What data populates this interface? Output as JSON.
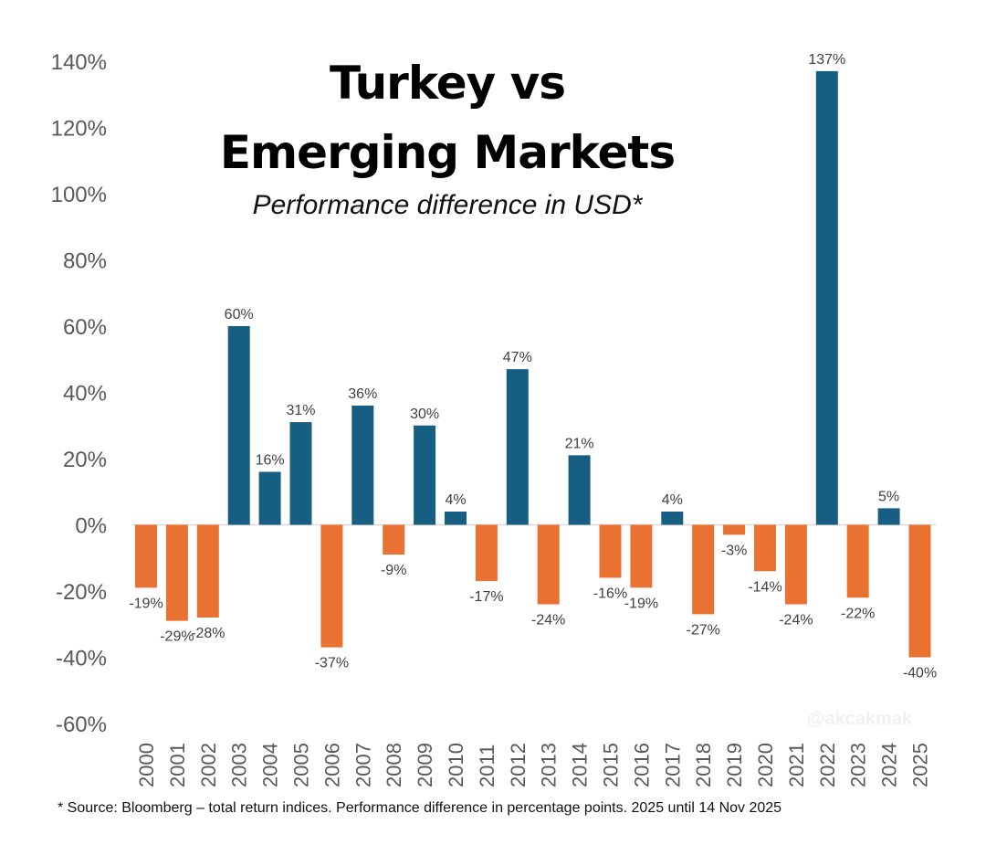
{
  "chart_data": {
    "type": "bar",
    "title_line1": "Turkey vs",
    "title_line2": "Emerging Markets",
    "subtitle": "Performance difference in USD*",
    "categories": [
      "2000",
      "2001",
      "2002",
      "2003",
      "2004",
      "2005",
      "2006",
      "2007",
      "2008",
      "2009",
      "2010",
      "2011",
      "2012",
      "2013",
      "2014",
      "2015",
      "2016",
      "2017",
      "2018",
      "2019",
      "2020",
      "2021",
      "2022",
      "2023",
      "2024",
      "2025"
    ],
    "values": [
      -19,
      -29,
      -28,
      60,
      16,
      31,
      -37,
      36,
      -9,
      30,
      4,
      -17,
      47,
      -24,
      21,
      -16,
      -19,
      4,
      -27,
      -3,
      -14,
      -24,
      137,
      -22,
      5,
      -40
    ],
    "data_labels": [
      "-19%",
      "-29%",
      "-28%",
      "60%",
      "16%",
      "31%",
      "-37%",
      "36%",
      "-9%",
      "30%",
      "4%",
      "-17%",
      "47%",
      "-24%",
      "21%",
      "-16%",
      "-19%",
      "4%",
      "-27%",
      "-3%",
      "-14%",
      "-24%",
      "137%",
      "-22%",
      "5%",
      "-40%"
    ],
    "ylim": [
      -60,
      140
    ],
    "y_ticks": [
      "-60%",
      "-40%",
      "-20%",
      "0%",
      "20%",
      "40%",
      "60%",
      "80%",
      "100%",
      "120%",
      "140%"
    ],
    "y_tick_values": [
      -60,
      -40,
      -20,
      0,
      20,
      40,
      60,
      80,
      100,
      120,
      140
    ],
    "grid": false,
    "colors": {
      "positive": "#175e83",
      "negative": "#e97132"
    }
  },
  "footer": "* Source: Bloomberg – total return indices. Performance difference in percentage points. 2025 until 14 Nov 2025",
  "watermark": "@akcakmak"
}
